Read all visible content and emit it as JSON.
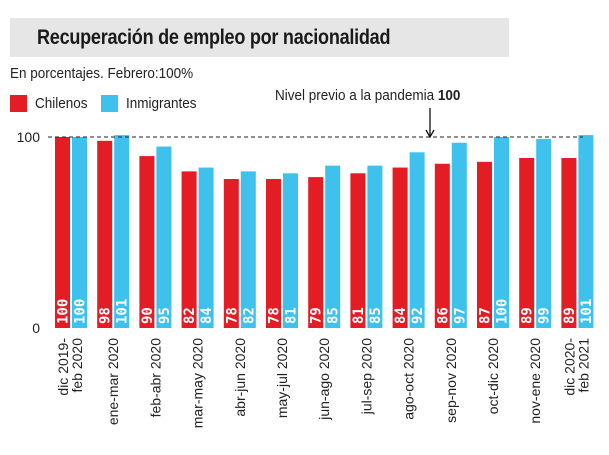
{
  "chart_data": {
    "type": "bar",
    "title": "Recuperación de empleo por nacionalidad",
    "subtitle": "En porcentajes. Febrero:100%",
    "xlabel": "",
    "ylabel": "",
    "ylim": [
      0,
      100
    ],
    "yticks": [
      "0",
      "100"
    ],
    "grid": false,
    "legend_position": "top-left",
    "categories": [
      [
        "dic 2019-",
        "feb 2020"
      ],
      [
        "ene-mar 2020"
      ],
      [
        "feb-abr 2020"
      ],
      [
        "mar-may 2020"
      ],
      [
        "abr-jun 2020"
      ],
      [
        "may-jul 2020"
      ],
      [
        "jun-ago 2020"
      ],
      [
        "jul-sep 2020"
      ],
      [
        "ago-oct 2020"
      ],
      [
        "sep-nov 2020"
      ],
      [
        "oct-dic 2020"
      ],
      [
        "nov-ene 2020"
      ],
      [
        "dic 2020-",
        "feb 2021"
      ]
    ],
    "series": [
      {
        "name": "Chilenos",
        "color": "#e41c24",
        "values": [
          100,
          98,
          90,
          82,
          78,
          78,
          79,
          81,
          84,
          86,
          87,
          89,
          89
        ]
      },
      {
        "name": "Inmigrantes",
        "color": "#3fc1ee",
        "values": [
          100,
          101,
          95,
          84,
          82,
          81,
          85,
          85,
          92,
          97,
          100,
          99,
          101
        ]
      }
    ],
    "reference_line": {
      "value": 100,
      "label": "Nivel previo a la pandemia",
      "label_value": "100",
      "style": "dashed",
      "at_category_index": 9
    }
  }
}
